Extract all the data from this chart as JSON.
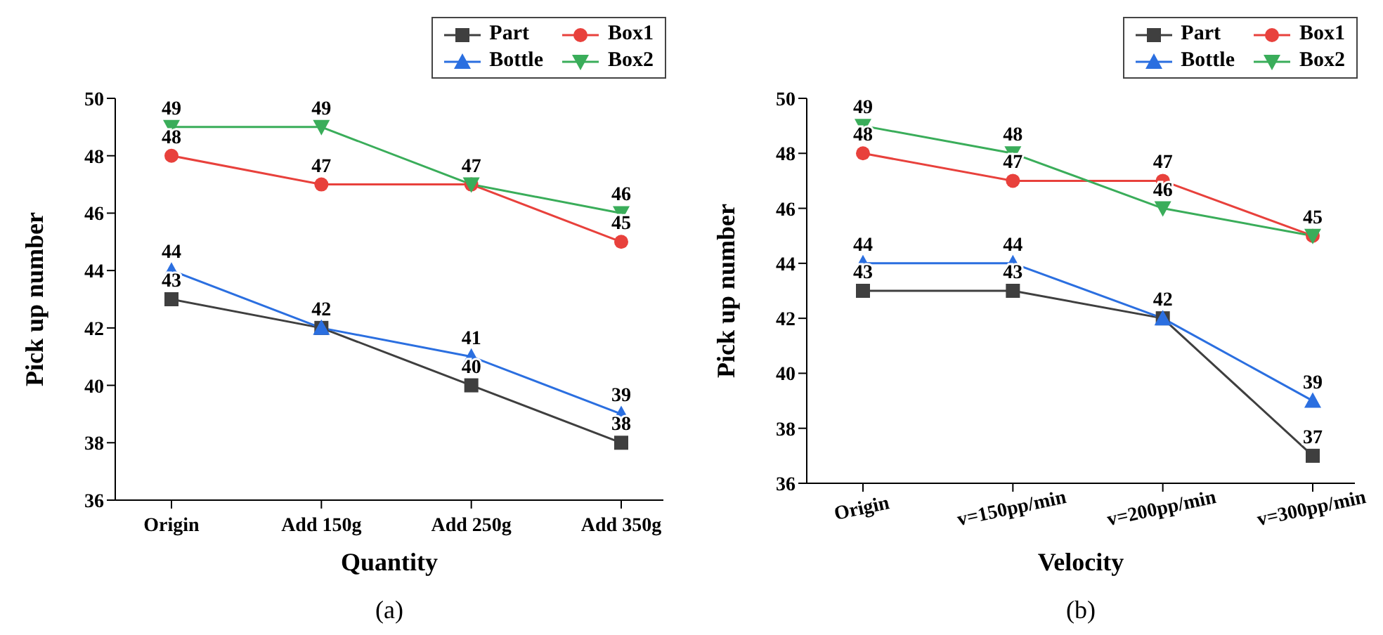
{
  "chart_data": [
    {
      "type": "line",
      "xlabel": "Quantity",
      "ylabel": "Pick up number",
      "annotations": [
        "(a)"
      ],
      "categories": [
        "Origin",
        "Add 150g",
        "Add 250g",
        "Add 350g"
      ],
      "ylim": [
        36,
        50
      ],
      "yticks": [
        36,
        38,
        40,
        42,
        44,
        46,
        48,
        50
      ],
      "legend": "top right",
      "series": [
        {
          "name": "Part",
          "color": "#3f3f3f",
          "marker": "square",
          "values": [
            43,
            42,
            40,
            38
          ],
          "value_labels": [
            "43",
            "42",
            "40",
            "38"
          ]
        },
        {
          "name": "Bottle",
          "color": "#2b6fe0",
          "marker": "triangle",
          "values": [
            44,
            42,
            41,
            39
          ],
          "value_labels": [
            "44",
            null,
            "41",
            "39"
          ]
        },
        {
          "name": "Box1",
          "color": "#e8413c",
          "marker": "circle",
          "values": [
            48,
            47,
            47,
            45
          ],
          "value_labels": [
            "48",
            "47",
            null,
            "45"
          ]
        },
        {
          "name": "Box2",
          "color": "#3aad5a",
          "marker": "triangle-down",
          "values": [
            49,
            49,
            47,
            46
          ],
          "value_labels": [
            "49",
            "49",
            "47",
            "46"
          ]
        }
      ]
    },
    {
      "type": "line",
      "xlabel": "Velocity",
      "ylabel": "Pick up number",
      "annotations": [
        "(b)"
      ],
      "categories": [
        "Origin",
        "v=150pp/min",
        "v=200pp/min",
        "v=300pp/min"
      ],
      "ylim": [
        36,
        50
      ],
      "yticks": [
        36,
        38,
        40,
        42,
        44,
        46,
        48,
        50
      ],
      "legend": "top right",
      "series": [
        {
          "name": "Part",
          "color": "#3f3f3f",
          "marker": "square",
          "values": [
            43,
            43,
            42,
            37
          ],
          "value_labels": [
            "43",
            "43",
            null,
            "37"
          ]
        },
        {
          "name": "Bottle",
          "color": "#2b6fe0",
          "marker": "triangle",
          "values": [
            44,
            44,
            42,
            39
          ],
          "value_labels": [
            "44",
            "44",
            "42",
            "39"
          ]
        },
        {
          "name": "Box1",
          "color": "#e8413c",
          "marker": "circle",
          "values": [
            48,
            47,
            47,
            45
          ],
          "value_labels": [
            "48",
            "47",
            "47",
            null
          ]
        },
        {
          "name": "Box2",
          "color": "#3aad5a",
          "marker": "triangle-down",
          "values": [
            49,
            48,
            46,
            45
          ],
          "value_labels": [
            "49",
            "48",
            "46",
            "45"
          ]
        }
      ]
    }
  ]
}
